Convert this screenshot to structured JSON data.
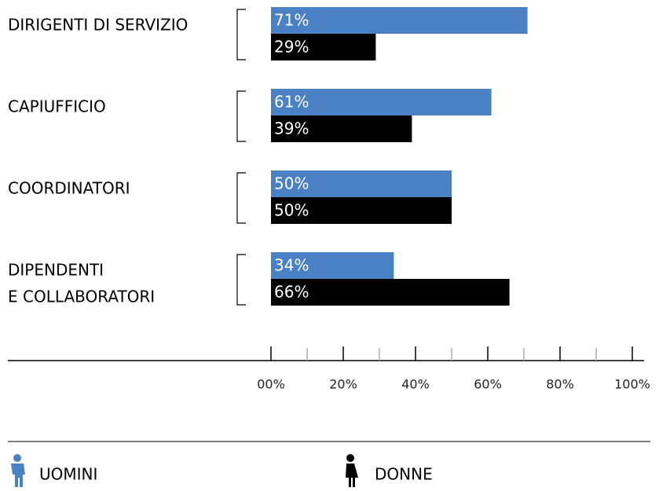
{
  "chart_data": {
    "type": "bar",
    "orientation": "horizontal",
    "categories": [
      [
        "DIRIGENTI DI SERVIZIO"
      ],
      [
        "CAPIUFFICIO"
      ],
      [
        "COORDINATORI"
      ],
      [
        "DIPENDENTI",
        "E COLLABORATORI"
      ]
    ],
    "series": [
      {
        "name": "UOMINI",
        "color": "#4a80c4",
        "values": [
          71,
          61,
          50,
          34
        ],
        "value_labels": [
          "71%",
          "61%",
          "50%",
          "34%"
        ]
      },
      {
        "name": "DONNE",
        "color": "#000000",
        "values": [
          29,
          39,
          50,
          66
        ],
        "value_labels": [
          "29%",
          "39%",
          "50%",
          "66%"
        ]
      }
    ],
    "xlim": [
      0,
      100
    ],
    "xticks": [
      {
        "value": 0,
        "label": "00%"
      },
      {
        "value": 20,
        "label": "20%"
      },
      {
        "value": 40,
        "label": "40%"
      },
      {
        "value": 60,
        "label": "60%"
      },
      {
        "value": 80,
        "label": "80%"
      },
      {
        "value": 100,
        "label": "100%"
      }
    ],
    "minor_xticks": [
      10,
      30,
      50,
      70,
      90
    ],
    "legend": "bottom"
  }
}
